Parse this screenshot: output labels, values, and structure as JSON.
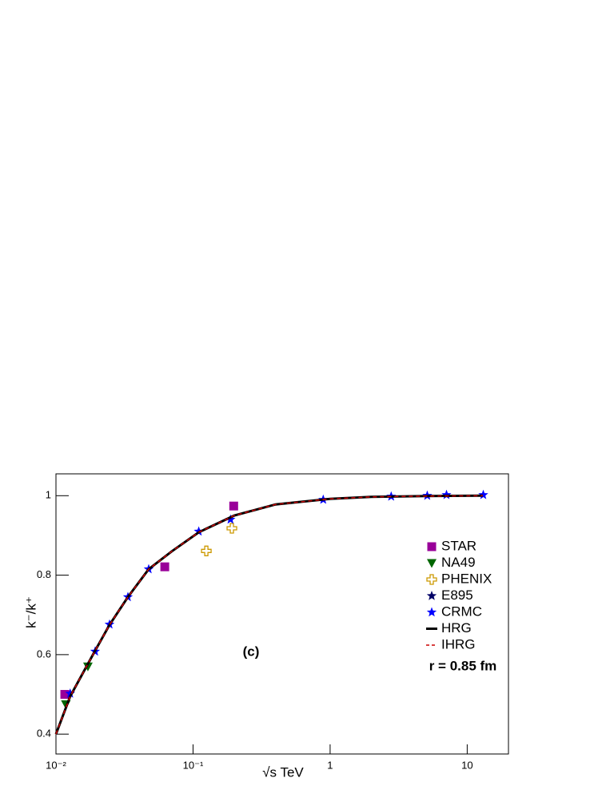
{
  "chart_data": {
    "type": "scatter",
    "x_label": "√s TeV",
    "y_label": "k⁻/k⁺",
    "annotations": [
      "(c)",
      "r = 0.85 fm"
    ],
    "x_log": true,
    "legend_position": "right",
    "xlim": [
      0.01,
      20
    ],
    "ylim": [
      0.35,
      1.055
    ],
    "xticks": [
      {
        "value": 0.01,
        "label": "10⁻²"
      },
      {
        "value": 0.1,
        "label": "10⁻¹"
      },
      1,
      10
    ],
    "yticks": [
      0.4,
      0.6,
      0.8,
      1
    ],
    "series": [
      {
        "name": "STAR",
        "color": "#990099",
        "marker": "square",
        "x": [
          0.0116,
          0.0622,
          0.198
        ],
        "values": [
          0.5,
          0.821,
          0.974
        ]
      },
      {
        "name": "NA49",
        "color": "#006600",
        "marker": "triangle-down",
        "x": [
          0.0118,
          0.0171
        ],
        "values": [
          0.475,
          0.57
        ]
      },
      {
        "name": "PHENIX",
        "color": "#cc9900",
        "marker": "open-cross",
        "x": [
          0.125,
          0.192
        ],
        "values": [
          0.861,
          0.918
        ]
      },
      {
        "name": "E895",
        "color": "#000066",
        "marker": "star",
        "x": [],
        "values": []
      },
      {
        "name": "CRMC",
        "color": "#0000ff",
        "marker": "star",
        "x": [
          0.0127,
          0.0193,
          0.0246,
          0.0335,
          0.0475,
          0.11,
          0.1875,
          0.891,
          2.79,
          5.11,
          7.06,
          13.1
        ],
        "values": [
          0.502,
          0.608,
          0.676,
          0.745,
          0.815,
          0.91,
          0.94,
          0.99,
          0.998,
          1.0,
          1.002,
          1.002
        ]
      },
      {
        "name": "HRG",
        "color": "#000000",
        "marker": "line",
        "x": [
          0.01,
          0.0127,
          0.0193,
          0.0246,
          0.0335,
          0.0475,
          0.07,
          0.11,
          0.2,
          0.4,
          1,
          2,
          5,
          13
        ],
        "values": [
          0.4,
          0.495,
          0.61,
          0.675,
          0.745,
          0.815,
          0.86,
          0.908,
          0.95,
          0.978,
          0.992,
          0.997,
          0.999,
          1.0
        ]
      },
      {
        "name": "IHRG",
        "color": "#cc0000",
        "marker": "dashed-line",
        "x": [
          0.01,
          0.0127,
          0.0193,
          0.0246,
          0.0335,
          0.0475,
          0.07,
          0.11,
          0.2,
          0.4,
          1,
          2,
          5,
          13
        ],
        "values": [
          0.4,
          0.495,
          0.61,
          0.675,
          0.745,
          0.815,
          0.86,
          0.908,
          0.95,
          0.978,
          0.992,
          0.997,
          0.999,
          1.0
        ]
      }
    ]
  }
}
